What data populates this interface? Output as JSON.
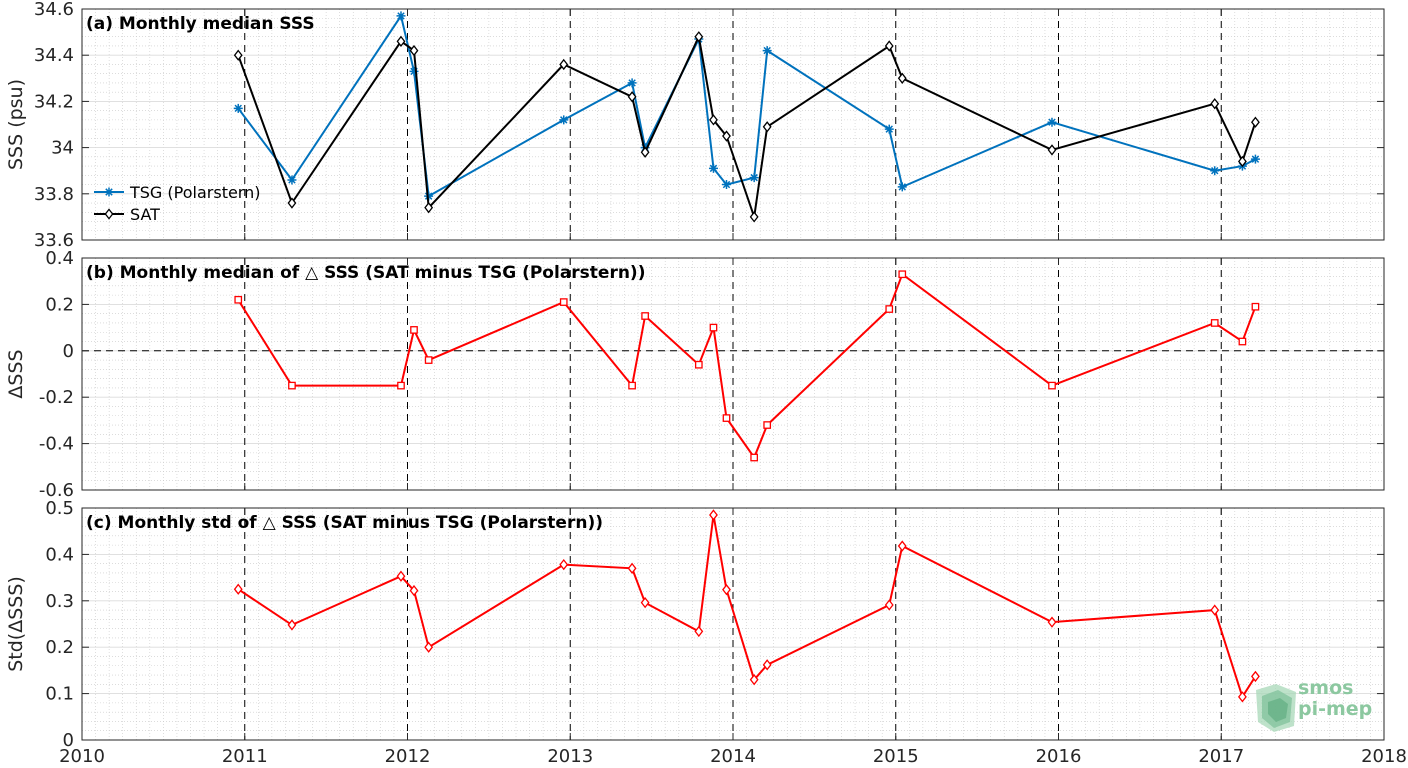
{
  "chart_data": [
    {
      "type": "line",
      "title": "(a) Monthly median SSS",
      "xlabel": "",
      "ylabel": "SSS (psu)",
      "xlim": [
        2010,
        2018
      ],
      "ylim": [
        33.6,
        34.6
      ],
      "xticks": [
        "2010",
        "2011",
        "2012",
        "2013",
        "2014",
        "2015",
        "2016",
        "2017",
        "2018"
      ],
      "yticks": [
        "33.6",
        "33.8",
        "34",
        "34.2",
        "34.4",
        "34.6"
      ],
      "grid": true,
      "legend_position": "lower-left",
      "series": [
        {
          "name": "TSG (Polarstern)",
          "color": "#0072BD",
          "marker": "star",
          "points": [
            [
              2010.96,
              34.17
            ],
            [
              2011.29,
              33.86
            ],
            [
              2011.96,
              34.57
            ],
            [
              2012.04,
              34.33
            ],
            [
              2012.13,
              33.79
            ],
            [
              2012.96,
              34.12
            ],
            [
              2013.38,
              34.28
            ],
            [
              2013.46,
              34.0
            ],
            [
              2013.79,
              34.47
            ],
            [
              2013.88,
              33.91
            ],
            [
              2013.96,
              33.84
            ],
            [
              2014.13,
              33.87
            ],
            [
              2014.21,
              34.42
            ],
            [
              2014.96,
              34.08
            ],
            [
              2015.04,
              33.83
            ],
            [
              2015.96,
              34.11
            ],
            [
              2016.96,
              33.9
            ],
            [
              2017.13,
              33.92
            ],
            [
              2017.21,
              33.95
            ]
          ]
        },
        {
          "name": "SAT",
          "color": "#000000",
          "marker": "diamond",
          "points": [
            [
              2010.96,
              34.4
            ],
            [
              2011.29,
              33.76
            ],
            [
              2011.96,
              34.46
            ],
            [
              2012.04,
              34.42
            ],
            [
              2012.13,
              33.74
            ],
            [
              2012.96,
              34.36
            ],
            [
              2013.38,
              34.22
            ],
            [
              2013.46,
              33.98
            ],
            [
              2013.79,
              34.48
            ],
            [
              2013.88,
              34.12
            ],
            [
              2013.96,
              34.05
            ],
            [
              2014.13,
              33.7
            ],
            [
              2014.21,
              34.09
            ],
            [
              2014.96,
              34.44
            ],
            [
              2015.04,
              34.3
            ],
            [
              2015.96,
              33.99
            ],
            [
              2016.96,
              34.19
            ],
            [
              2017.13,
              33.94
            ],
            [
              2017.21,
              34.11
            ]
          ]
        }
      ]
    },
    {
      "type": "line",
      "title": "(b) Monthly median of △ SSS (SAT minus TSG (Polarstern))",
      "xlabel": "",
      "ylabel": "ΔSSS",
      "xlim": [
        2010,
        2018
      ],
      "ylim": [
        -0.6,
        0.4
      ],
      "xticks": [
        "2010",
        "2011",
        "2012",
        "2013",
        "2014",
        "2015",
        "2016",
        "2017",
        "2018"
      ],
      "yticks": [
        "-0.6",
        "-0.4",
        "-0.2",
        "0",
        "0.2",
        "0.4"
      ],
      "grid": true,
      "series": [
        {
          "color": "#FF0000",
          "marker": "square",
          "points": [
            [
              2010.96,
              0.22
            ],
            [
              2011.29,
              -0.15
            ],
            [
              2011.96,
              -0.15
            ],
            [
              2012.04,
              0.09
            ],
            [
              2012.13,
              -0.04
            ],
            [
              2012.96,
              0.21
            ],
            [
              2013.38,
              -0.15
            ],
            [
              2013.46,
              0.15
            ],
            [
              2013.79,
              -0.06
            ],
            [
              2013.88,
              0.1
            ],
            [
              2013.96,
              -0.29
            ],
            [
              2014.13,
              -0.46
            ],
            [
              2014.21,
              -0.32
            ],
            [
              2014.96,
              0.18
            ],
            [
              2015.04,
              0.33
            ],
            [
              2015.96,
              -0.15
            ],
            [
              2016.96,
              0.12
            ],
            [
              2017.13,
              0.04
            ],
            [
              2017.21,
              0.19
            ]
          ]
        }
      ]
    },
    {
      "type": "line",
      "title": "(c) Monthly std of △ SSS (SAT minus TSG (Polarstern))",
      "xlabel": "",
      "ylabel": "Std(ΔSSS)",
      "xlim": [
        2010,
        2018
      ],
      "ylim": [
        0,
        0.5
      ],
      "xticks": [
        "2010",
        "2011",
        "2012",
        "2013",
        "2014",
        "2015",
        "2016",
        "2017",
        "2018"
      ],
      "yticks": [
        "0",
        "0.1",
        "0.2",
        "0.3",
        "0.4",
        "0.5"
      ],
      "grid": true,
      "series": [
        {
          "color": "#FF0000",
          "marker": "diamond",
          "points": [
            [
              2010.96,
              0.325
            ],
            [
              2011.29,
              0.248
            ],
            [
              2011.96,
              0.353
            ],
            [
              2012.04,
              0.322
            ],
            [
              2012.13,
              0.2
            ],
            [
              2012.96,
              0.378
            ],
            [
              2013.38,
              0.37
            ],
            [
              2013.46,
              0.296
            ],
            [
              2013.79,
              0.234
            ],
            [
              2013.88,
              0.485
            ],
            [
              2013.96,
              0.324
            ],
            [
              2014.13,
              0.13
            ],
            [
              2014.21,
              0.162
            ],
            [
              2014.96,
              0.291
            ],
            [
              2015.04,
              0.418
            ],
            [
              2015.96,
              0.254
            ],
            [
              2016.96,
              0.28
            ],
            [
              2017.13,
              0.093
            ],
            [
              2017.21,
              0.137
            ]
          ]
        }
      ]
    }
  ],
  "logo": {
    "line1": "smos",
    "line2": "pi-mep",
    "color": "#8cc8a0"
  }
}
